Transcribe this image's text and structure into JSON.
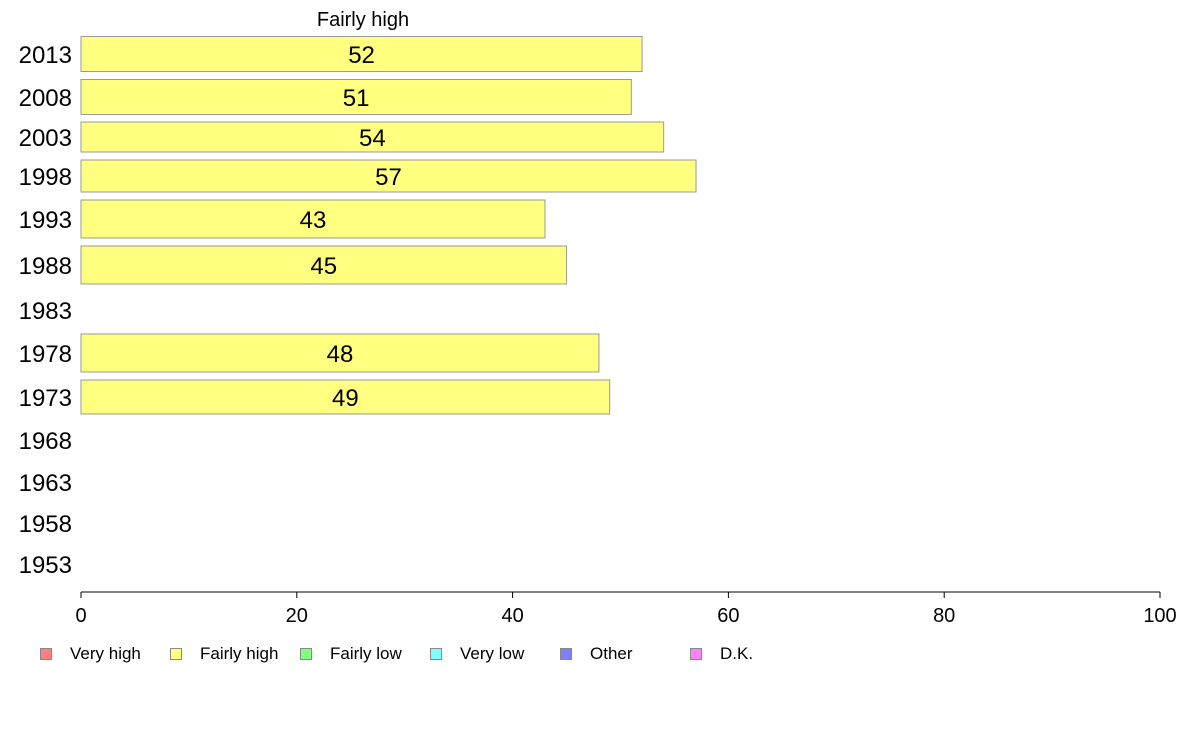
{
  "chart_data": {
    "type": "bar",
    "orientation": "horizontal",
    "title": "Fairly high",
    "categories": [
      "2013",
      "2008",
      "2003",
      "1998",
      "1993",
      "1988",
      "1983",
      "1978",
      "1973",
      "1968",
      "1963",
      "1958",
      "1953"
    ],
    "series": [
      {
        "name": "Fairly high",
        "values": [
          52,
          51,
          54,
          57,
          43,
          45,
          null,
          48,
          49,
          null,
          null,
          null,
          null
        ]
      }
    ],
    "xlim": [
      0,
      100
    ],
    "xticks": [
      0,
      20,
      40,
      60,
      80,
      100
    ],
    "grid": false,
    "legend_position": "bottom"
  },
  "legend": [
    {
      "label": "Very high",
      "color": "#ff8080"
    },
    {
      "label": "Fairly high",
      "color": "#ffff80"
    },
    {
      "label": "Fairly low",
      "color": "#80ff80"
    },
    {
      "label": "Very low",
      "color": "#80ffff"
    },
    {
      "label": "Other",
      "color": "#8080ff"
    },
    {
      "label": "D.K.",
      "color": "#ff80ff"
    }
  ],
  "colors": {
    "bar_fill": "#ffff80",
    "bar_stroke": "#999999",
    "axis": "#000000"
  }
}
